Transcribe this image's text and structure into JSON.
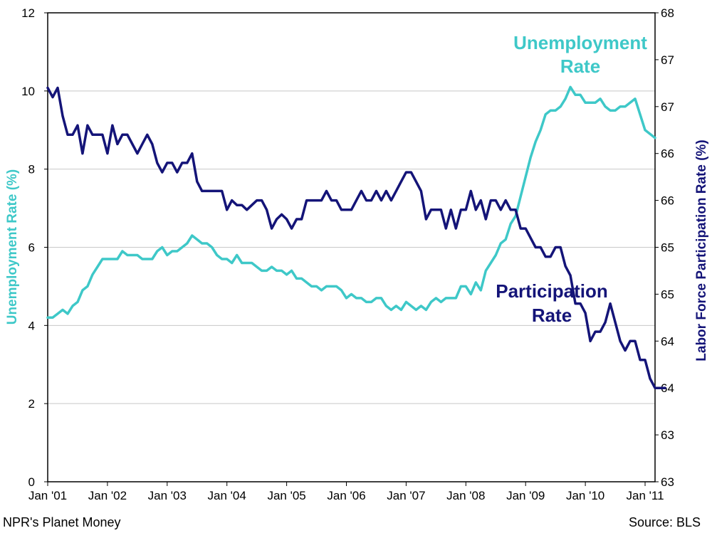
{
  "chart_data": {
    "type": "line",
    "xlabel": "",
    "x_ticks": [
      "Jan '01",
      "Jan '02",
      "Jan '03",
      "Jan '04",
      "Jan '05",
      "Jan '06",
      "Jan '07",
      "Jan '08",
      "Jan '09",
      "Jan '10",
      "Jan '11"
    ],
    "x_range_months": [
      0,
      122
    ],
    "y_left": {
      "label": "Unemployment Rate (%)",
      "range": [
        0,
        12
      ],
      "ticks": [
        "0",
        "2",
        "4",
        "6",
        "8",
        "10",
        "12"
      ]
    },
    "y_right": {
      "label": "Labor Force Participation Rate (%)",
      "range": [
        63,
        68
      ],
      "ticks": [
        "63",
        "63",
        "64",
        "64",
        "65",
        "65",
        "66",
        "66",
        "67",
        "67",
        "68"
      ]
    },
    "grid": "horizontal",
    "series": [
      {
        "name": "Unemployment Rate",
        "axis": "left",
        "color": "#3ec8c8",
        "start": "Jan 2001",
        "frequency": "monthly",
        "values": [
          4.2,
          4.2,
          4.3,
          4.4,
          4.3,
          4.5,
          4.6,
          4.9,
          5.0,
          5.3,
          5.5,
          5.7,
          5.7,
          5.7,
          5.7,
          5.9,
          5.8,
          5.8,
          5.8,
          5.7,
          5.7,
          5.7,
          5.9,
          6.0,
          5.8,
          5.9,
          5.9,
          6.0,
          6.1,
          6.3,
          6.2,
          6.1,
          6.1,
          6.0,
          5.8,
          5.7,
          5.7,
          5.6,
          5.8,
          5.6,
          5.6,
          5.6,
          5.5,
          5.4,
          5.4,
          5.5,
          5.4,
          5.4,
          5.3,
          5.4,
          5.2,
          5.2,
          5.1,
          5.0,
          5.0,
          4.9,
          5.0,
          5.0,
          5.0,
          4.9,
          4.7,
          4.8,
          4.7,
          4.7,
          4.6,
          4.6,
          4.7,
          4.7,
          4.5,
          4.4,
          4.5,
          4.4,
          4.6,
          4.5,
          4.4,
          4.5,
          4.4,
          4.6,
          4.7,
          4.6,
          4.7,
          4.7,
          4.7,
          5.0,
          5.0,
          4.8,
          5.1,
          4.9,
          5.4,
          5.6,
          5.8,
          6.1,
          6.2,
          6.6,
          6.8,
          7.3,
          7.8,
          8.3,
          8.7,
          9.0,
          9.4,
          9.5,
          9.5,
          9.6,
          9.8,
          10.1,
          9.9,
          9.9,
          9.7,
          9.7,
          9.7,
          9.8,
          9.6,
          9.5,
          9.5,
          9.6,
          9.6,
          9.7,
          9.8,
          9.4,
          9.0,
          8.9,
          8.8
        ]
      },
      {
        "name": "Participation Rate",
        "axis": "right",
        "color": "#141478",
        "start": "Jan 2001",
        "frequency": "monthly",
        "values": [
          67.2,
          67.1,
          67.2,
          66.9,
          66.7,
          66.7,
          66.8,
          66.5,
          66.8,
          66.7,
          66.7,
          66.7,
          66.5,
          66.8,
          66.6,
          66.7,
          66.7,
          66.6,
          66.5,
          66.6,
          66.7,
          66.6,
          66.4,
          66.3,
          66.4,
          66.4,
          66.3,
          66.4,
          66.4,
          66.5,
          66.2,
          66.1,
          66.1,
          66.1,
          66.1,
          66.1,
          65.9,
          66.0,
          65.95,
          65.95,
          65.9,
          65.95,
          66.0,
          66.0,
          65.9,
          65.7,
          65.8,
          65.85,
          65.8,
          65.7,
          65.8,
          65.8,
          66.0,
          66.0,
          66.0,
          66.0,
          66.1,
          66.0,
          66.0,
          65.9,
          65.9,
          65.9,
          66.0,
          66.1,
          66.0,
          66.0,
          66.1,
          66.0,
          66.1,
          66.0,
          66.1,
          66.2,
          66.3,
          66.3,
          66.2,
          66.1,
          65.8,
          65.9,
          65.9,
          65.9,
          65.7,
          65.9,
          65.7,
          65.9,
          65.9,
          66.1,
          65.9,
          66.0,
          65.8,
          66.0,
          66.0,
          65.9,
          66.0,
          65.9,
          65.9,
          65.7,
          65.7,
          65.6,
          65.5,
          65.5,
          65.4,
          65.4,
          65.5,
          65.5,
          65.3,
          65.2,
          64.9,
          64.9,
          64.8,
          64.5,
          64.6,
          64.6,
          64.7,
          64.9,
          64.7,
          64.5,
          64.4,
          64.5,
          64.5,
          64.3,
          64.3,
          64.1,
          64.0,
          64.0,
          64.0
        ]
      }
    ],
    "annotations": [
      {
        "series": "Unemployment Rate",
        "lines": [
          "Unemployment",
          "Rate"
        ]
      },
      {
        "series": "Participation Rate",
        "lines": [
          "Participation",
          "Rate"
        ]
      }
    ]
  },
  "footer": {
    "left": "NPR's Planet Money",
    "right": "Source: BLS"
  }
}
